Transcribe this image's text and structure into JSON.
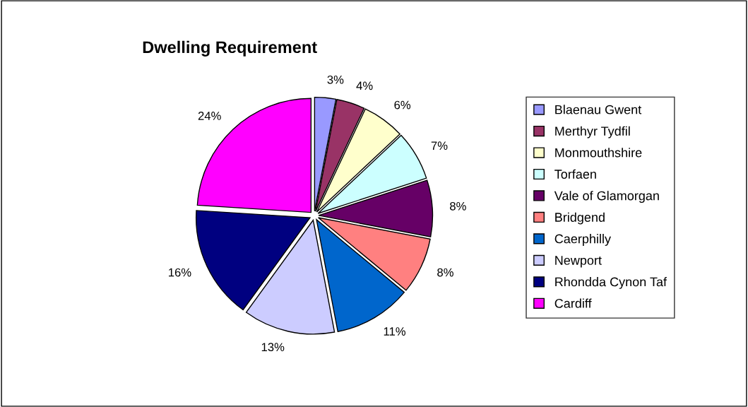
{
  "chart_data": {
    "type": "pie",
    "title": "Dwelling Requirement",
    "categories": [
      "Blaenau Gwent",
      "Merthyr Tydfil",
      "Monmouthshire",
      "Torfaen",
      "Vale of Glamorgan",
      "Bridgend",
      "Caerphilly",
      "Newport",
      "Rhondda Cynon Taf",
      "Cardiff"
    ],
    "values": [
      3,
      4,
      6,
      7,
      8,
      8,
      11,
      13,
      16,
      24
    ],
    "colors": [
      "#9999ff",
      "#993366",
      "#ffffcc",
      "#ccffff",
      "#660066",
      "#ff8080",
      "#0066cc",
      "#ccccff",
      "#000080",
      "#ff00ff"
    ],
    "value_labels": [
      "3%",
      "4%",
      "6%",
      "7%",
      "8%",
      "8%",
      "11%",
      "13%",
      "16%",
      "24%"
    ],
    "legend": "right"
  }
}
